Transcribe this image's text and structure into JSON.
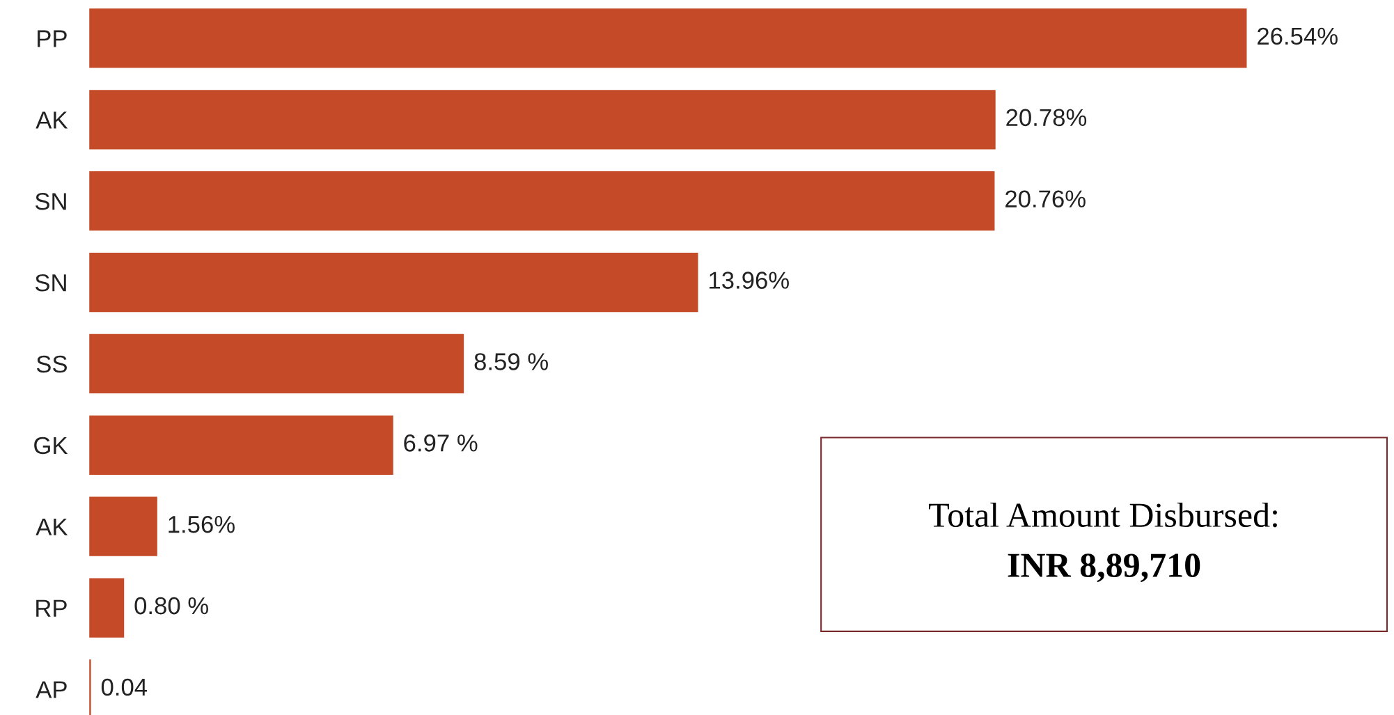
{
  "chart_data": {
    "type": "bar",
    "orientation": "horizontal",
    "categories": [
      "PP",
      "AK",
      "SN",
      "SN",
      "SS",
      "GK",
      "AK",
      "RP",
      "AP"
    ],
    "values": [
      26.54,
      20.78,
      20.76,
      13.96,
      8.59,
      6.97,
      1.56,
      0.8,
      0.04
    ],
    "value_labels": [
      "26.54%",
      "20.78%",
      "20.76%",
      "13.96%",
      "8.59 %",
      "6.97 %",
      "1.56%",
      "0.80 %",
      "0.04"
    ],
    "color": "#c44a28",
    "grid": false,
    "legend": false,
    "tick_labels": "y",
    "annotations": [
      "Total Amount Disbursed:",
      "INR 8,89,710"
    ]
  }
}
